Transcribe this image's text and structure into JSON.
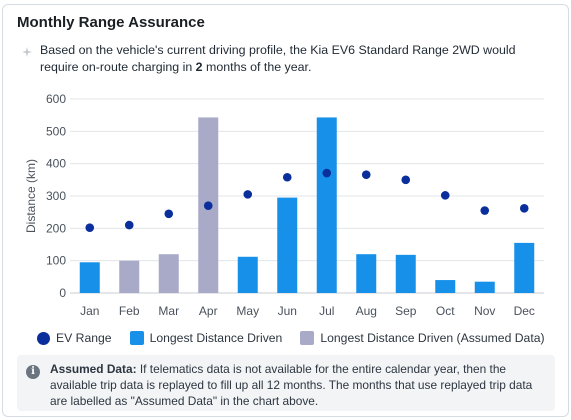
{
  "card": {
    "title": "Monthly Range Assurance",
    "intro_prefix": "Based on the vehicle's current driving profile, the Kia EV6 Standard Range 2WD would require on-route charging in ",
    "intro_count": "2",
    "intro_suffix": " months of the year."
  },
  "note": {
    "heading": "Assumed Data:",
    "body": " If telematics data is not available for the entire calendar year, then the available trip data is replayed to fill up all 12 months. The months that use replayed trip data are labelled as \"Assumed Data\" in the chart above."
  },
  "colors": {
    "ev_range": "#0a2f9c",
    "driven": "#1690e8",
    "assumed": "#a8aac8",
    "grid": "#e3e6ea",
    "axis_text": "#4a525c"
  },
  "icons": {
    "sparkle": "sparkle-icon",
    "info": "info-icon"
  },
  "chart_data": {
    "type": "bar",
    "ylabel": "Distance (km)",
    "xlabel": "",
    "ylim": [
      0,
      600
    ],
    "yticks": [
      "0",
      "100",
      "200",
      "300",
      "400",
      "500",
      "600"
    ],
    "grid": true,
    "legend_position": "bottom",
    "categories": [
      "Jan",
      "Feb",
      "Mar",
      "Apr",
      "May",
      "Jun",
      "Jul",
      "Aug",
      "Sep",
      "Oct",
      "Nov",
      "Dec"
    ],
    "series": [
      {
        "name": "EV Range",
        "kind": "points",
        "values": [
          202,
          210,
          245,
          270,
          305,
          358,
          371,
          366,
          350,
          302,
          255,
          262
        ]
      },
      {
        "name": "Longest Distance Driven",
        "kind": "bar",
        "values": [
          95,
          null,
          null,
          null,
          112,
          295,
          543,
          120,
          118,
          40,
          35,
          155
        ]
      },
      {
        "name": "Longest Distance Driven (Assumed Data)",
        "kind": "bar",
        "values": [
          null,
          100,
          120,
          543,
          null,
          null,
          null,
          null,
          null,
          null,
          null,
          null
        ]
      }
    ]
  }
}
